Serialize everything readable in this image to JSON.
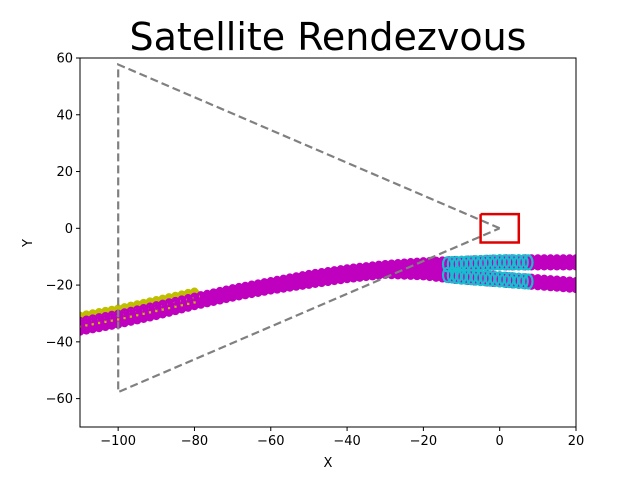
{
  "chart_data": {
    "type": "line",
    "title": "Satellite Rendezvous",
    "xlabel": "X",
    "ylabel": "Y",
    "xlim": [
      -110,
      20
    ],
    "ylim": [
      -70,
      60
    ],
    "xticks": [
      -100,
      -80,
      -60,
      -40,
      -20,
      0,
      20
    ],
    "yticks": [
      -60,
      -40,
      -20,
      0,
      20,
      40,
      60
    ],
    "xtick_labels": [
      "−100",
      "−80",
      "−60",
      "−40",
      "−20",
      "0",
      "20"
    ],
    "ytick_labels": [
      "−60",
      "−40",
      "−20",
      "0",
      "20",
      "40",
      "60"
    ],
    "grid": false,
    "colors": {
      "cone": "#808080",
      "target_box": "#e00000",
      "path_main": "#bf00bf",
      "path_early": "#bfbf00",
      "path_cyan": "#17becf"
    },
    "series": [
      {
        "role": "approach-cone",
        "style": "dashed",
        "x": [
          0,
          -100,
          -100,
          0
        ],
        "y": [
          0,
          57.7,
          -57.7,
          0
        ]
      },
      {
        "role": "target-box",
        "style": "solid",
        "x": [
          -5,
          5,
          5,
          -5,
          -5
        ],
        "y": [
          5,
          5,
          -5,
          -5,
          5
        ]
      },
      {
        "role": "chaser-path-1",
        "style": "markers",
        "x": [
          -110,
          -100,
          -90,
          -80,
          -70,
          -60,
          -50,
          -40,
          -30,
          -20,
          -10,
          0,
          10,
          20
        ],
        "y": [
          -34,
          -31.5,
          -28.5,
          -25.5,
          -22.5,
          -20,
          -17.5,
          -15.5,
          -14,
          -13,
          -12.5,
          -12,
          -12,
          -12
        ]
      },
      {
        "role": "chaser-path-2",
        "style": "markers",
        "x": [
          -110,
          -100,
          -90,
          -80,
          -70,
          -60,
          -50,
          -40,
          -30,
          -20,
          -10,
          0,
          10,
          20
        ],
        "y": [
          -35,
          -32.5,
          -29.5,
          -26,
          -23,
          -20.5,
          -18.5,
          -16.5,
          -15,
          -15.5,
          -17,
          -18,
          -19,
          -20
        ]
      }
    ]
  }
}
